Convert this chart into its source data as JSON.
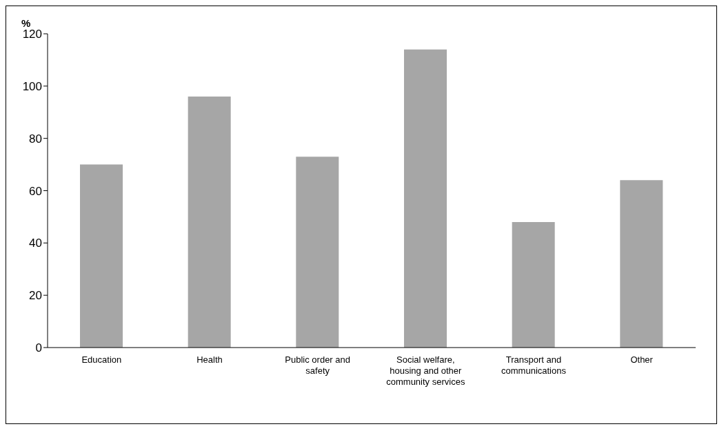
{
  "chart_data": {
    "type": "bar",
    "ylabel": "%",
    "categories": [
      "Education",
      "Health",
      "Public order and safety",
      "Social welfare, housing and other community services",
      "Transport and communications",
      "Other"
    ],
    "values": [
      70,
      96,
      73,
      114,
      48,
      64
    ],
    "color": "#a6a6a6",
    "ylim": [
      0,
      120
    ],
    "yticks": [
      0,
      20,
      40,
      60,
      80,
      100,
      120
    ],
    "grid": false,
    "legend": false
  }
}
